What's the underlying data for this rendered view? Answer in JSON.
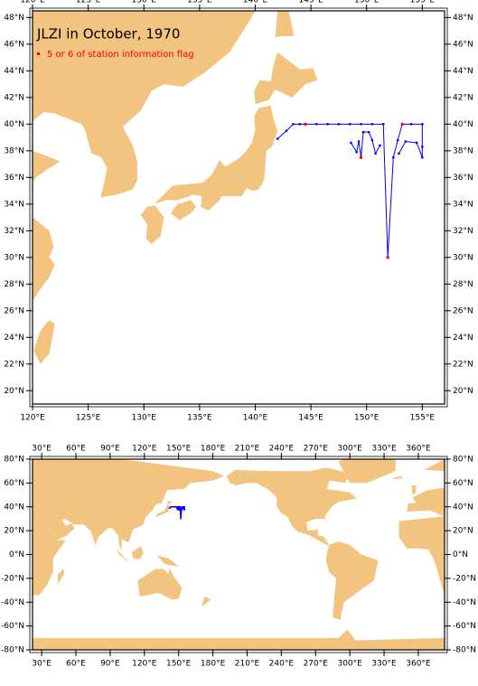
{
  "maps": [
    {
      "title": "JLZI in October, 1970",
      "legend": "5 or 6 of station information flag",
      "xlim": [
        120,
        157
      ],
      "ylim": [
        19,
        48.5
      ],
      "xticks": [
        {
          "value": 120,
          "label": "120°E"
        },
        {
          "value": 125,
          "label": "125°E"
        },
        {
          "value": 130,
          "label": "130°E"
        },
        {
          "value": 135,
          "label": "135°E"
        },
        {
          "value": 140,
          "label": "140°E"
        },
        {
          "value": 145,
          "label": "145°E"
        },
        {
          "value": 150,
          "label": "150°E"
        },
        {
          "value": 155,
          "label": "155°E"
        }
      ],
      "yticks": [
        {
          "value": 20,
          "label": "20°N"
        },
        {
          "value": 22,
          "label": "22°N"
        },
        {
          "value": 24,
          "label": "24°N"
        },
        {
          "value": 26,
          "label": "26°N"
        },
        {
          "value": 28,
          "label": "28°N"
        },
        {
          "value": 30,
          "label": "30°N"
        },
        {
          "value": 32,
          "label": "32°N"
        },
        {
          "value": 34,
          "label": "34°N"
        },
        {
          "value": 36,
          "label": "36°N"
        },
        {
          "value": 38,
          "label": "38°N"
        },
        {
          "value": 40,
          "label": "40°N"
        },
        {
          "value": 42,
          "label": "42°N"
        },
        {
          "value": 44,
          "label": "44°N"
        },
        {
          "value": 46,
          "label": "46°N"
        },
        {
          "value": 48,
          "label": "48°N"
        }
      ],
      "track_color": "#0000ff",
      "flag_color": "#ff0000",
      "track": {
        "lon": [
          142.0,
          142.8,
          143.4,
          144.0,
          144.5,
          145.5,
          146.5,
          147.5,
          148.5,
          149.5,
          150.5,
          151.5,
          151.9,
          152.4,
          152.8,
          153.2,
          154.0,
          155.0,
          155.0,
          155.0,
          154.5,
          153.5,
          152.9,
          null,
          148.6,
          149.1,
          149.3,
          149.5,
          149.7,
          150.2,
          150.5,
          150.8,
          151.2
        ],
        "lat": [
          38.9,
          39.5,
          40.0,
          40.0,
          40.0,
          40.0,
          40.0,
          40.0,
          40.0,
          40.0,
          40.0,
          40.0,
          30.0,
          37.5,
          38.8,
          40.0,
          40.0,
          40.0,
          38.3,
          37.5,
          38.6,
          38.7,
          37.8,
          null,
          38.6,
          37.9,
          38.7,
          37.5,
          39.4,
          39.4,
          38.8,
          37.8,
          38.4
        ],
        "flag": [
          false,
          false,
          false,
          false,
          true,
          false,
          false,
          false,
          false,
          false,
          false,
          false,
          true,
          false,
          false,
          true,
          false,
          false,
          false,
          false,
          false,
          false,
          false,
          null,
          false,
          false,
          false,
          true,
          false,
          false,
          false,
          false,
          false
        ]
      }
    },
    {
      "xlim": [
        22,
        383
      ],
      "ylim": [
        -80,
        80
      ],
      "xticks": [
        {
          "value": 30,
          "label": "30°E"
        },
        {
          "value": 60,
          "label": "60°E"
        },
        {
          "value": 90,
          "label": "90°E"
        },
        {
          "value": 120,
          "label": "120°E"
        },
        {
          "value": 150,
          "label": "150°E"
        },
        {
          "value": 180,
          "label": "180°E"
        },
        {
          "value": 210,
          "label": "210°E"
        },
        {
          "value": 240,
          "label": "240°E"
        },
        {
          "value": 270,
          "label": "270°E"
        },
        {
          "value": 300,
          "label": "300°E"
        },
        {
          "value": 330,
          "label": "330°E"
        },
        {
          "value": 360,
          "label": "360°E"
        }
      ],
      "yticks": [
        {
          "value": -80,
          "label": "-80°N"
        },
        {
          "value": -60,
          "label": "-60°N"
        },
        {
          "value": -40,
          "label": "-40°N"
        },
        {
          "value": -20,
          "label": "-20°N"
        },
        {
          "value": 0,
          "label": "0°N"
        },
        {
          "value": 20,
          "label": "20°N"
        },
        {
          "value": 40,
          "label": "40°N"
        },
        {
          "value": 60,
          "label": "60°N"
        },
        {
          "value": 80,
          "label": "80°N"
        }
      ]
    }
  ]
}
